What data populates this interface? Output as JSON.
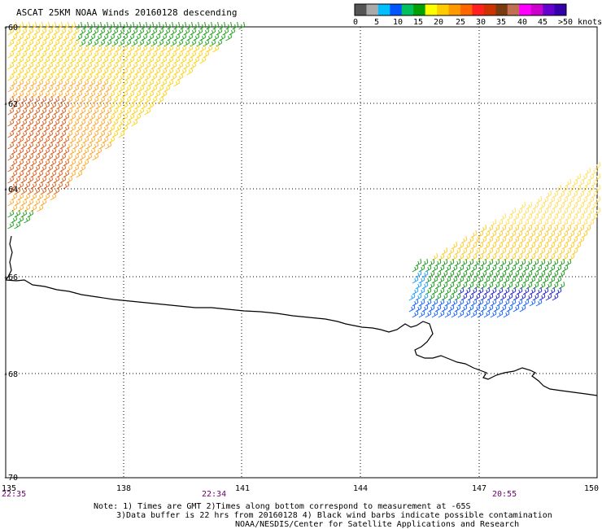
{
  "title": "ASCAT 25KM NOAA Winds 20160128 descending",
  "legend": {
    "unit_label": ">50 knots",
    "colors": [
      "#555555",
      "#aaaaaa",
      "#00bfff",
      "#0055ff",
      "#00c060",
      "#00a000",
      "#ffff00",
      "#ffcc00",
      "#ff9900",
      "#ff6600",
      "#ff2020",
      "#cc3300",
      "#7a3a10",
      "#c07050",
      "#ff00ff",
      "#cc00cc",
      "#6600cc",
      "#3300aa"
    ],
    "ticks": [
      "0",
      "5",
      "10",
      "15",
      "20",
      "25",
      "30",
      "35",
      "40",
      "45"
    ]
  },
  "lat_labels": [
    "-60",
    "-62",
    "-64",
    "-66",
    "-68",
    "-70"
  ],
  "lon_labels": [
    "135",
    "138",
    "141",
    "144",
    "147",
    "150"
  ],
  "time_labels": [
    "22:35",
    "22:34",
    "20:55"
  ],
  "notes": [
    "Note: 1) Times are GMT 2)Times along bottom correspond to measurement at -65S",
    "3)Data buffer is 22 hrs from 20160128 4) Black wind barbs indicate possible contamination",
    "NOAA/NESDIS/Center for Satellite Applications and Research"
  ]
}
